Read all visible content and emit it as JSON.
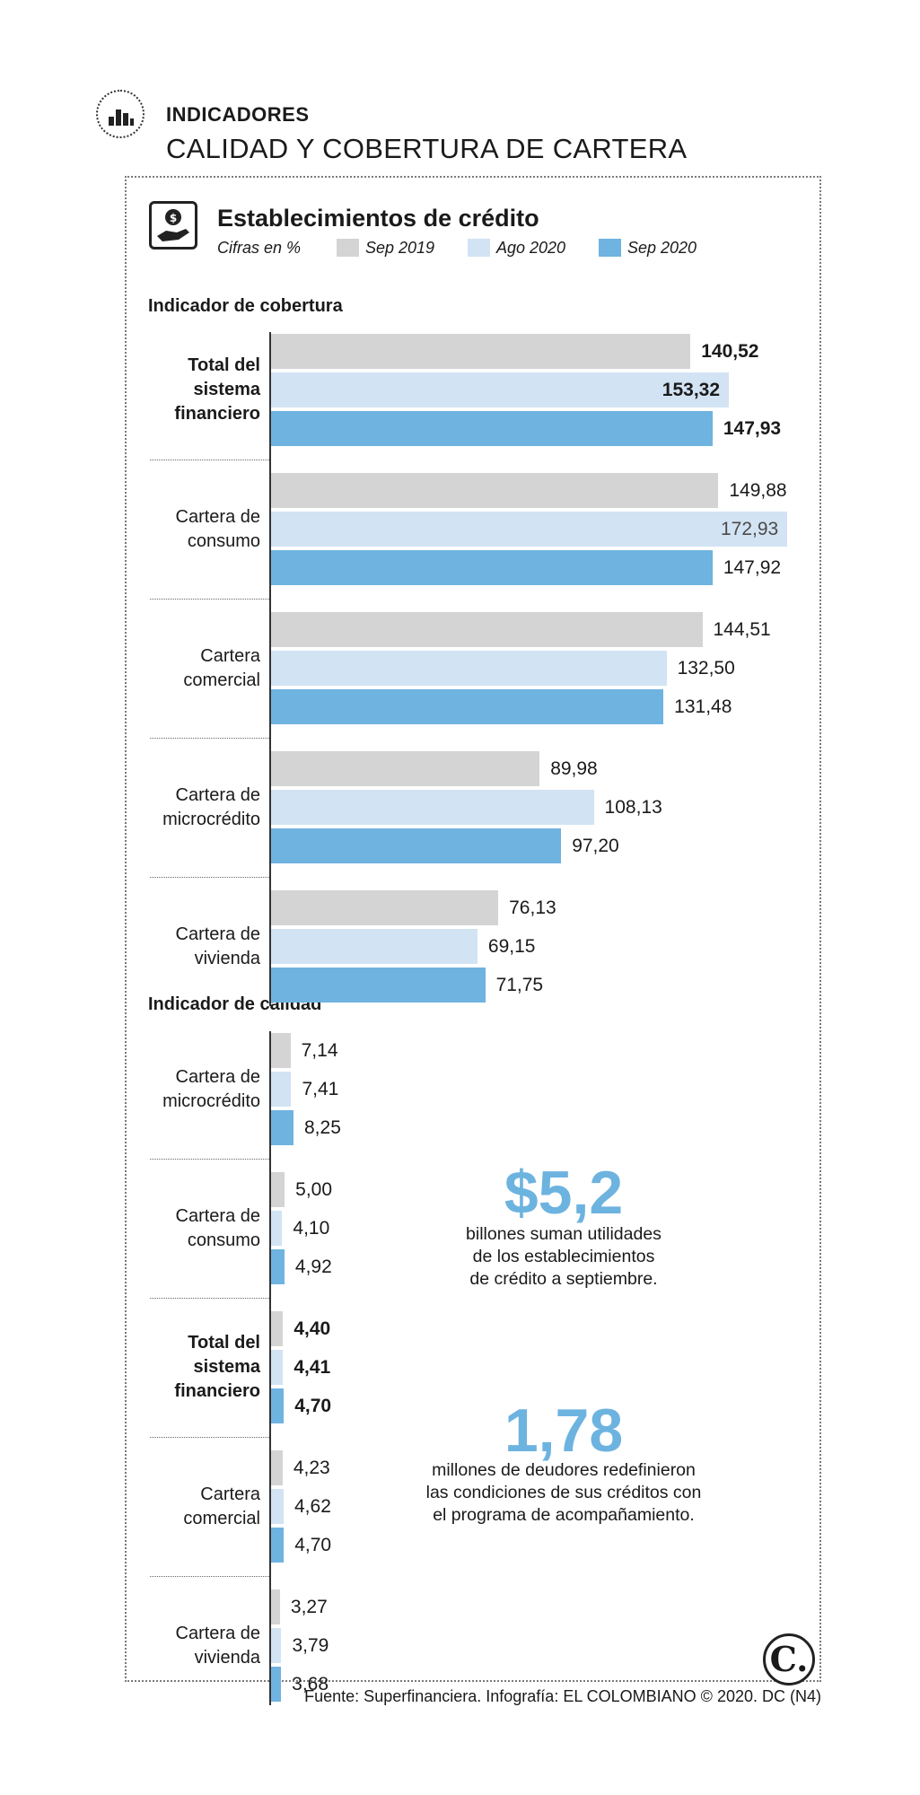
{
  "header": {
    "kicker": "INDICADORES",
    "title": "CALIDAD Y COBERTURA DE CARTERA"
  },
  "subheader": {
    "title": "Establecimientos de crédito",
    "units": "Cifras en %"
  },
  "colors": {
    "sep2019": "#d4d4d4",
    "ago2020": "#d2e3f3",
    "sep2020": "#6fb3e0",
    "accent": "#6db3e0"
  },
  "icons": [
    "bar-chart-icon",
    "money-hand-icon",
    "el-colombiano-logo"
  ],
  "chart_data": [
    {
      "type": "bar",
      "orientation": "horizontal",
      "title": "Indicador de cobertura",
      "legend": [
        "Sep 2019",
        "Ago 2020",
        "Sep 2020"
      ],
      "categories": [
        "Total del sistema financiero",
        "Cartera de consumo",
        "Cartera comercial",
        "Cartera de microcrédito",
        "Cartera de vivienda"
      ],
      "series": [
        {
          "name": "Sep 2019",
          "values": [
            140.52,
            149.88,
            144.51,
            89.98,
            76.13
          ],
          "labels": [
            "140,52",
            "149,88",
            "144,51",
            "89,98",
            "76,13"
          ]
        },
        {
          "name": "Ago 2020",
          "values": [
            153.32,
            172.93,
            132.5,
            108.13,
            69.15
          ],
          "labels": [
            "153,32",
            "172,93",
            "132,50",
            "108,13",
            "69,15"
          ]
        },
        {
          "name": "Sep 2020",
          "values": [
            147.93,
            147.92,
            131.48,
            97.2,
            71.75
          ],
          "labels": [
            "147,93",
            "147,92",
            "131,48",
            "97,20",
            "71,75"
          ]
        }
      ]
    },
    {
      "type": "bar",
      "orientation": "horizontal",
      "title": "Indicador de calidad",
      "legend": [
        "Sep 2019",
        "Ago 2020",
        "Sep 2020"
      ],
      "categories": [
        "Cartera de microcrédito",
        "Cartera de consumo",
        "Total del sistema financiero",
        "Cartera comercial",
        "Cartera de vivienda"
      ],
      "series": [
        {
          "name": "Sep 2019",
          "values": [
            7.14,
            5.0,
            4.4,
            4.23,
            3.27
          ],
          "labels": [
            "7,14",
            "5,00",
            "4,40",
            "4,23",
            "3,27"
          ]
        },
        {
          "name": "Ago 2020",
          "values": [
            7.41,
            4.1,
            4.41,
            4.62,
            3.79
          ],
          "labels": [
            "7,41",
            "4,10",
            "4,41",
            "4,62",
            "3,79"
          ]
        },
        {
          "name": "Sep 2020",
          "values": [
            8.25,
            4.92,
            4.7,
            4.7,
            3.68
          ],
          "labels": [
            "8,25",
            "4,92",
            "4,70",
            "4,70",
            "3,68"
          ]
        }
      ]
    }
  ],
  "callouts": [
    {
      "number": "$5,2",
      "text": [
        "billones suman utilidades",
        "de los establecimientos",
        "de crédito a septiembre."
      ]
    },
    {
      "number": "1,78",
      "text": [
        "millones de deudores redefinieron",
        "las condiciones de sus créditos con",
        "el programa de acompañamiento."
      ]
    }
  ],
  "footer": {
    "source": "Fuente: Superfinanciera. Infografía: EL COLOMBIANO © 2020. DC (N4)",
    "logo_letter": "C."
  }
}
